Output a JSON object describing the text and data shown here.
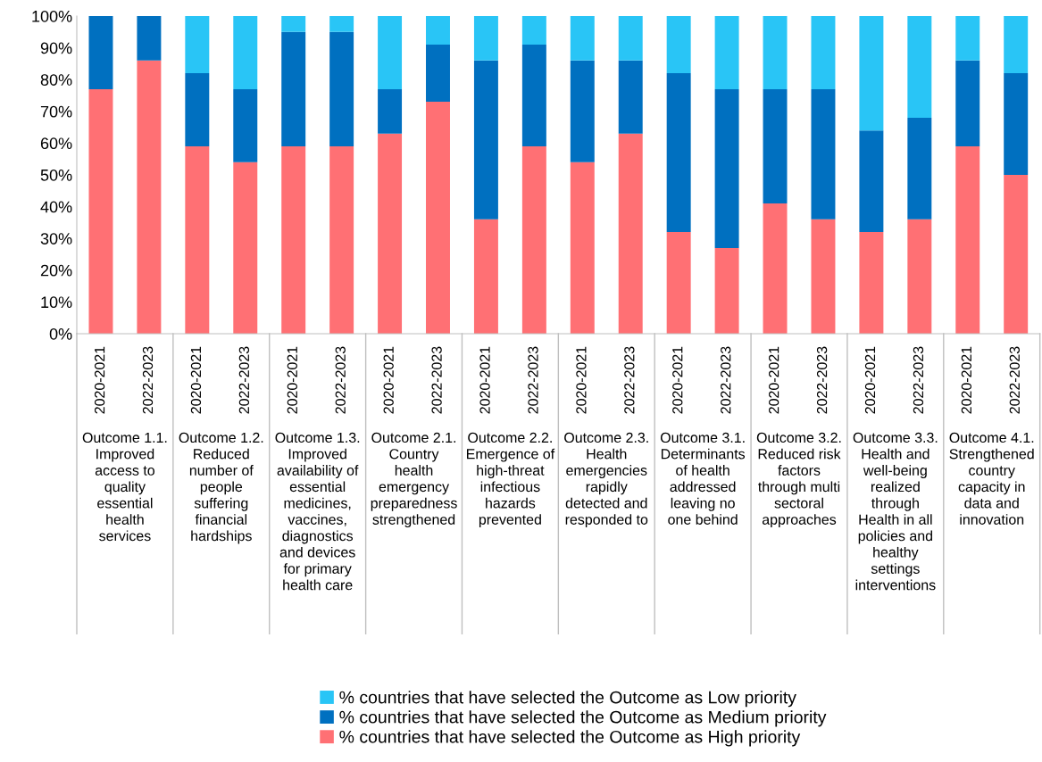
{
  "chart_data": {
    "type": "bar",
    "stacked": true,
    "categories": [
      "2020-2021",
      "2022-2023",
      "2020-2021",
      "2022-2023",
      "2020-2021",
      "2022-2023",
      "2020-2021",
      "2022-2023",
      "2020-2021",
      "2022-2023",
      "2020-2021",
      "2022-2023",
      "2020-2021",
      "2022-2023",
      "2020-2021",
      "2022-2023",
      "2020-2021",
      "2022-2023",
      "2020-2021",
      "2022-2023"
    ],
    "series": [
      {
        "name": "% countries that have selected the Outcome as High priority",
        "color": "#ff7074",
        "values": [
          77,
          86,
          59,
          54,
          59,
          59,
          63,
          73,
          36,
          59,
          54,
          63,
          32,
          27,
          41,
          36,
          32,
          36,
          59,
          50
        ]
      },
      {
        "name": "% countries that have selected the Outcome as Medium priority",
        "color": "#0070c0",
        "values": [
          23,
          14,
          23,
          23,
          36,
          36,
          14,
          18,
          50,
          32,
          32,
          23,
          50,
          50,
          36,
          41,
          32,
          32,
          27,
          32
        ]
      },
      {
        "name": "% countries that have selected the Outcome as Low priority",
        "color": "#29c5f6",
        "values": [
          0,
          0,
          18,
          23,
          5,
          5,
          23,
          9,
          14,
          9,
          14,
          14,
          18,
          23,
          23,
          23,
          36,
          32,
          14,
          18
        ]
      }
    ],
    "ylim": [
      0,
      100
    ],
    "yticks": [
      {
        "value": 0,
        "label": "0%"
      },
      {
        "value": 10,
        "label": "10%"
      },
      {
        "value": 20,
        "label": "20%"
      },
      {
        "value": 30,
        "label": "30%"
      },
      {
        "value": 40,
        "label": "40%"
      },
      {
        "value": 50,
        "label": "50%"
      },
      {
        "value": 60,
        "label": "60%"
      },
      {
        "value": 70,
        "label": "70%"
      },
      {
        "value": 80,
        "label": "80%"
      },
      {
        "value": 90,
        "label": "90%"
      },
      {
        "value": 100,
        "label": "100%"
      }
    ],
    "annotations": [
      "Outcome 1.1.\nImproved\naccess to\nquality\nessential\nhealth\nservices",
      "Outcome 1.2.\nReduced\nnumber of\npeople\nsuffering\nfinancial\nhardships",
      "Outcome 1.3.\nImproved\navailability of\nessential\nmedicines,\nvaccines,\ndiagnostics\nand devices\nfor primary\nhealth care",
      "Outcome 2.1.\nCountry\nhealth\nemergency\npreparedness\nstrengthened",
      "Outcome 2.2.\nEmergence of\nhigh-threat\ninfectious\nhazards\nprevented",
      "Outcome 2.3.\nHealth\nemergencies\nrapidly\ndetected and\nresponded to",
      "Outcome 3.1.\nDeterminants\nof health\naddressed\nleaving no\none behind",
      "Outcome 3.2.\nReduced risk\nfactors\nthrough multi\nsectoral\napproaches",
      "Outcome 3.3.\nHealth and\nwell-being\nrealized\nthrough\nHealth in all\npolicies and\nhealthy\nsettings\ninterventions",
      "Outcome 4.1.\nStrengthened\ncountry\ncapacity in\ndata and\ninnovation"
    ],
    "grid": false,
    "legend": "bottom"
  }
}
